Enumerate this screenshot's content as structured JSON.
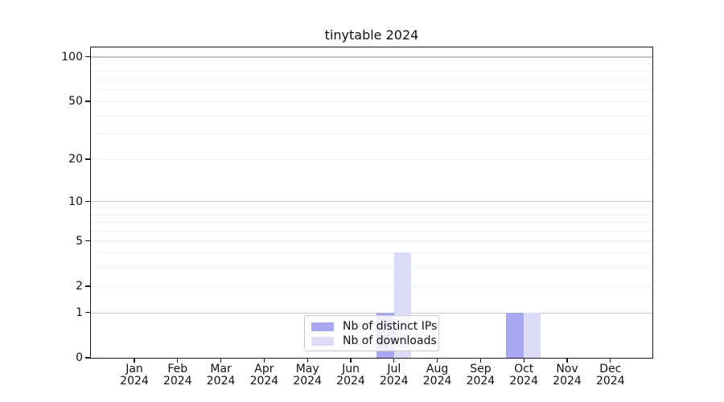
{
  "chart_data": {
    "type": "bar",
    "title": "tinytable 2024",
    "x_categories": [
      {
        "month": "Jan",
        "year": "2024"
      },
      {
        "month": "Feb",
        "year": "2024"
      },
      {
        "month": "Mar",
        "year": "2024"
      },
      {
        "month": "Apr",
        "year": "2024"
      },
      {
        "month": "May",
        "year": "2024"
      },
      {
        "month": "Jun",
        "year": "2024"
      },
      {
        "month": "Jul",
        "year": "2024"
      },
      {
        "month": "Aug",
        "year": "2024"
      },
      {
        "month": "Sep",
        "year": "2024"
      },
      {
        "month": "Oct",
        "year": "2024"
      },
      {
        "month": "Nov",
        "year": "2024"
      },
      {
        "month": "Dec",
        "year": "2024"
      }
    ],
    "series": [
      {
        "name": "Nb of distinct IPs",
        "color": "#a8a8f0",
        "values": [
          0,
          0,
          0,
          0,
          0,
          0,
          1,
          0,
          0,
          1,
          0,
          0
        ]
      },
      {
        "name": "Nb of downloads",
        "color": "#dcdcf6",
        "values": [
          0,
          0,
          0,
          0,
          0,
          0,
          4,
          0,
          0,
          1,
          0,
          0
        ]
      }
    ],
    "y_axis": {
      "scale": "log10(1+x)",
      "ticks": [
        {
          "label": "0",
          "value": 0
        },
        {
          "label": "1",
          "value": 1
        },
        {
          "label": "2",
          "value": 2
        },
        {
          "label": "5",
          "value": 5
        },
        {
          "label": "10",
          "value": 10
        },
        {
          "label": "20",
          "value": 20
        },
        {
          "label": "50",
          "value": 50
        },
        {
          "label": "100",
          "value": 100
        }
      ],
      "top_value": 115
    },
    "gridlines": {
      "major_values": [
        1,
        10,
        100
      ],
      "minor_values": [
        2,
        3,
        4,
        5,
        6,
        7,
        8,
        9,
        20,
        30,
        40,
        50,
        60,
        70,
        80,
        90
      ]
    },
    "legend": {
      "location": "lower center"
    },
    "colors": {
      "major_grid": "#c6c6c6",
      "minor_grid": "#efefef",
      "axis": "#1a1a1a",
      "background": "#ffffff"
    }
  }
}
